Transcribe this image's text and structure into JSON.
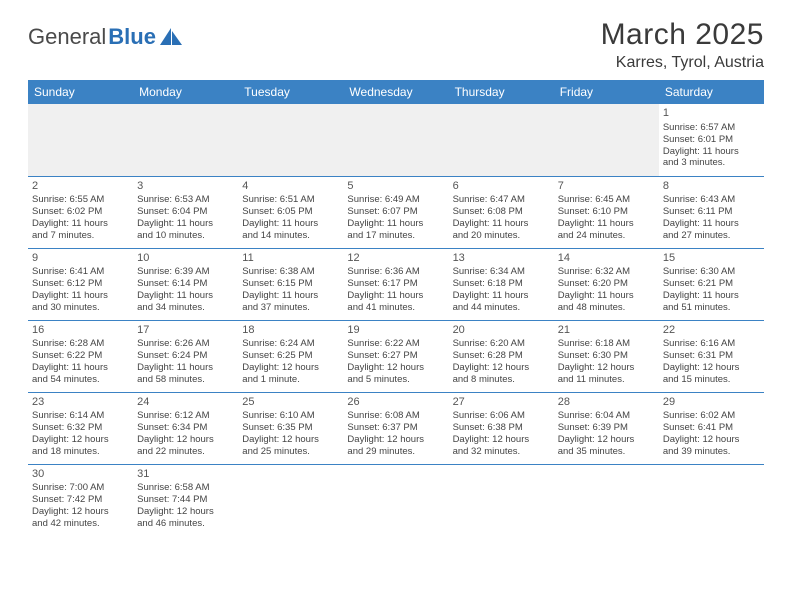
{
  "logo": {
    "text1": "General",
    "text2": "Blue"
  },
  "title": "March 2025",
  "location": "Karres, Tyrol, Austria",
  "colors": {
    "header_bg": "#3b82c4",
    "header_text": "#ffffff",
    "text": "#444444",
    "border": "#3b82c4",
    "empty_bg": "#f0f0f0"
  },
  "days_of_week": [
    "Sunday",
    "Monday",
    "Tuesday",
    "Wednesday",
    "Thursday",
    "Friday",
    "Saturday"
  ],
  "weeks": [
    [
      null,
      null,
      null,
      null,
      null,
      null,
      {
        "n": "1",
        "sr": "Sunrise: 6:57 AM",
        "ss": "Sunset: 6:01 PM",
        "d1": "Daylight: 11 hours",
        "d2": "and 3 minutes."
      }
    ],
    [
      {
        "n": "2",
        "sr": "Sunrise: 6:55 AM",
        "ss": "Sunset: 6:02 PM",
        "d1": "Daylight: 11 hours",
        "d2": "and 7 minutes."
      },
      {
        "n": "3",
        "sr": "Sunrise: 6:53 AM",
        "ss": "Sunset: 6:04 PM",
        "d1": "Daylight: 11 hours",
        "d2": "and 10 minutes."
      },
      {
        "n": "4",
        "sr": "Sunrise: 6:51 AM",
        "ss": "Sunset: 6:05 PM",
        "d1": "Daylight: 11 hours",
        "d2": "and 14 minutes."
      },
      {
        "n": "5",
        "sr": "Sunrise: 6:49 AM",
        "ss": "Sunset: 6:07 PM",
        "d1": "Daylight: 11 hours",
        "d2": "and 17 minutes."
      },
      {
        "n": "6",
        "sr": "Sunrise: 6:47 AM",
        "ss": "Sunset: 6:08 PM",
        "d1": "Daylight: 11 hours",
        "d2": "and 20 minutes."
      },
      {
        "n": "7",
        "sr": "Sunrise: 6:45 AM",
        "ss": "Sunset: 6:10 PM",
        "d1": "Daylight: 11 hours",
        "d2": "and 24 minutes."
      },
      {
        "n": "8",
        "sr": "Sunrise: 6:43 AM",
        "ss": "Sunset: 6:11 PM",
        "d1": "Daylight: 11 hours",
        "d2": "and 27 minutes."
      }
    ],
    [
      {
        "n": "9",
        "sr": "Sunrise: 6:41 AM",
        "ss": "Sunset: 6:12 PM",
        "d1": "Daylight: 11 hours",
        "d2": "and 30 minutes."
      },
      {
        "n": "10",
        "sr": "Sunrise: 6:39 AM",
        "ss": "Sunset: 6:14 PM",
        "d1": "Daylight: 11 hours",
        "d2": "and 34 minutes."
      },
      {
        "n": "11",
        "sr": "Sunrise: 6:38 AM",
        "ss": "Sunset: 6:15 PM",
        "d1": "Daylight: 11 hours",
        "d2": "and 37 minutes."
      },
      {
        "n": "12",
        "sr": "Sunrise: 6:36 AM",
        "ss": "Sunset: 6:17 PM",
        "d1": "Daylight: 11 hours",
        "d2": "and 41 minutes."
      },
      {
        "n": "13",
        "sr": "Sunrise: 6:34 AM",
        "ss": "Sunset: 6:18 PM",
        "d1": "Daylight: 11 hours",
        "d2": "and 44 minutes."
      },
      {
        "n": "14",
        "sr": "Sunrise: 6:32 AM",
        "ss": "Sunset: 6:20 PM",
        "d1": "Daylight: 11 hours",
        "d2": "and 48 minutes."
      },
      {
        "n": "15",
        "sr": "Sunrise: 6:30 AM",
        "ss": "Sunset: 6:21 PM",
        "d1": "Daylight: 11 hours",
        "d2": "and 51 minutes."
      }
    ],
    [
      {
        "n": "16",
        "sr": "Sunrise: 6:28 AM",
        "ss": "Sunset: 6:22 PM",
        "d1": "Daylight: 11 hours",
        "d2": "and 54 minutes."
      },
      {
        "n": "17",
        "sr": "Sunrise: 6:26 AM",
        "ss": "Sunset: 6:24 PM",
        "d1": "Daylight: 11 hours",
        "d2": "and 58 minutes."
      },
      {
        "n": "18",
        "sr": "Sunrise: 6:24 AM",
        "ss": "Sunset: 6:25 PM",
        "d1": "Daylight: 12 hours",
        "d2": "and 1 minute."
      },
      {
        "n": "19",
        "sr": "Sunrise: 6:22 AM",
        "ss": "Sunset: 6:27 PM",
        "d1": "Daylight: 12 hours",
        "d2": "and 5 minutes."
      },
      {
        "n": "20",
        "sr": "Sunrise: 6:20 AM",
        "ss": "Sunset: 6:28 PM",
        "d1": "Daylight: 12 hours",
        "d2": "and 8 minutes."
      },
      {
        "n": "21",
        "sr": "Sunrise: 6:18 AM",
        "ss": "Sunset: 6:30 PM",
        "d1": "Daylight: 12 hours",
        "d2": "and 11 minutes."
      },
      {
        "n": "22",
        "sr": "Sunrise: 6:16 AM",
        "ss": "Sunset: 6:31 PM",
        "d1": "Daylight: 12 hours",
        "d2": "and 15 minutes."
      }
    ],
    [
      {
        "n": "23",
        "sr": "Sunrise: 6:14 AM",
        "ss": "Sunset: 6:32 PM",
        "d1": "Daylight: 12 hours",
        "d2": "and 18 minutes."
      },
      {
        "n": "24",
        "sr": "Sunrise: 6:12 AM",
        "ss": "Sunset: 6:34 PM",
        "d1": "Daylight: 12 hours",
        "d2": "and 22 minutes."
      },
      {
        "n": "25",
        "sr": "Sunrise: 6:10 AM",
        "ss": "Sunset: 6:35 PM",
        "d1": "Daylight: 12 hours",
        "d2": "and 25 minutes."
      },
      {
        "n": "26",
        "sr": "Sunrise: 6:08 AM",
        "ss": "Sunset: 6:37 PM",
        "d1": "Daylight: 12 hours",
        "d2": "and 29 minutes."
      },
      {
        "n": "27",
        "sr": "Sunrise: 6:06 AM",
        "ss": "Sunset: 6:38 PM",
        "d1": "Daylight: 12 hours",
        "d2": "and 32 minutes."
      },
      {
        "n": "28",
        "sr": "Sunrise: 6:04 AM",
        "ss": "Sunset: 6:39 PM",
        "d1": "Daylight: 12 hours",
        "d2": "and 35 minutes."
      },
      {
        "n": "29",
        "sr": "Sunrise: 6:02 AM",
        "ss": "Sunset: 6:41 PM",
        "d1": "Daylight: 12 hours",
        "d2": "and 39 minutes."
      }
    ],
    [
      {
        "n": "30",
        "sr": "Sunrise: 7:00 AM",
        "ss": "Sunset: 7:42 PM",
        "d1": "Daylight: 12 hours",
        "d2": "and 42 minutes."
      },
      {
        "n": "31",
        "sr": "Sunrise: 6:58 AM",
        "ss": "Sunset: 7:44 PM",
        "d1": "Daylight: 12 hours",
        "d2": "and 46 minutes."
      },
      null,
      null,
      null,
      null,
      null
    ]
  ]
}
